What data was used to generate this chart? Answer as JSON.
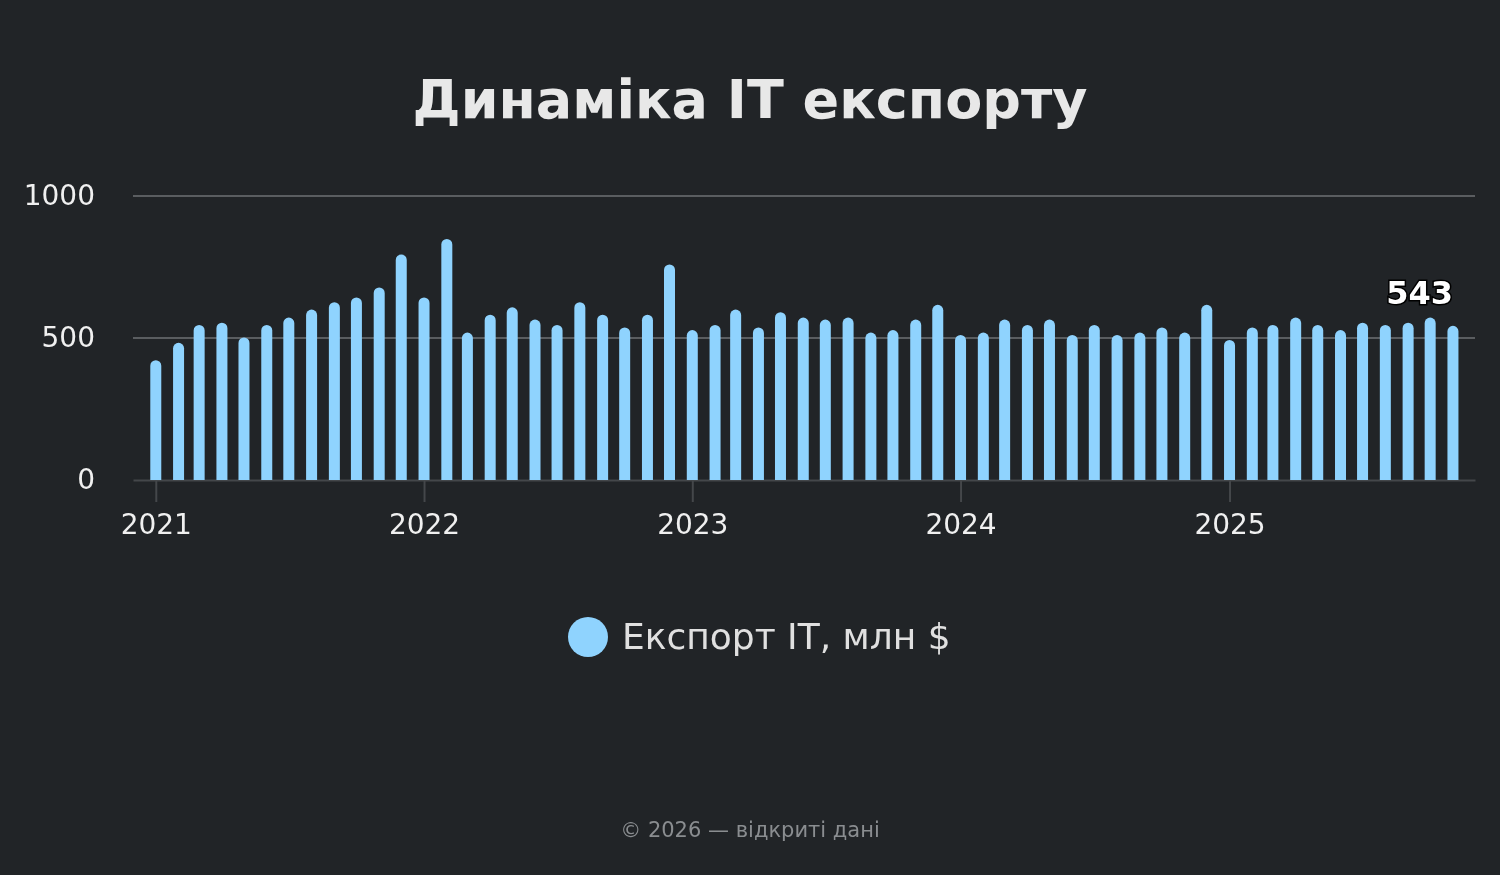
{
  "chart_data": {
    "type": "bar",
    "title": "Динаміка ІТ експорту",
    "x": [
      "2021-01",
      "2021-02",
      "2021-03",
      "2021-04",
      "2021-05",
      "2021-06",
      "2021-07",
      "2021-08",
      "2021-09",
      "2021-10",
      "2021-11",
      "2021-12",
      "2022-01",
      "2022-02",
      "2022-03",
      "2022-04",
      "2022-05",
      "2022-06",
      "2022-07",
      "2022-08",
      "2022-09",
      "2022-10",
      "2022-11",
      "2022-12",
      "2023-01",
      "2023-02",
      "2023-03",
      "2023-04",
      "2023-05",
      "2023-06",
      "2023-07",
      "2023-08",
      "2023-09",
      "2023-10",
      "2023-11",
      "2023-12",
      "2024-01",
      "2024-02",
      "2024-03",
      "2024-04",
      "2024-05",
      "2024-06",
      "2024-07",
      "2024-08",
      "2024-09",
      "2024-10",
      "2024-11",
      "2024-12",
      "2025-01",
      "2025-02",
      "2025-03",
      "2025-04",
      "2025-05",
      "2025-06",
      "2025-07",
      "2025-08",
      "2025-09",
      "2025-10",
      "2025-11"
    ],
    "series": [
      {
        "name": "Експорт ІТ, млн $",
        "color": "#8fd3fe",
        "values": [
          422,
          483,
          546,
          554,
          502,
          546,
          572,
          600,
          626,
          643,
          678,
          794,
          643,
          849,
          519,
          582,
          608,
          565,
          546,
          626,
          582,
          537,
          582,
          759,
          528,
          546,
          600,
          537,
          591,
          572,
          565,
          572,
          519,
          528,
          565,
          617,
          511,
          519,
          565,
          546,
          565,
          511,
          546,
          511,
          519,
          537,
          519,
          617,
          493,
          537,
          546,
          572,
          546,
          528,
          554,
          546,
          554,
          572,
          543
        ],
        "value_labels": [
          null,
          null,
          null,
          null,
          null,
          null,
          null,
          null,
          null,
          null,
          null,
          null,
          null,
          null,
          null,
          null,
          null,
          null,
          null,
          null,
          null,
          null,
          null,
          null,
          null,
          null,
          null,
          null,
          null,
          null,
          null,
          null,
          null,
          null,
          null,
          null,
          null,
          null,
          null,
          null,
          null,
          null,
          null,
          null,
          null,
          null,
          null,
          null,
          null,
          null,
          null,
          null,
          null,
          null,
          null,
          null,
          null,
          null,
          "543"
        ]
      }
    ],
    "xlim": [
      "2020-12",
      "2025-12"
    ],
    "xticks": [
      {
        "value": "2021",
        "label": "2021"
      },
      {
        "value": "2022",
        "label": "2022"
      },
      {
        "value": "2023",
        "label": "2023"
      },
      {
        "value": "2024",
        "label": "2024"
      },
      {
        "value": "2025",
        "label": "2025"
      }
    ],
    "ylim": [
      0,
      1000
    ],
    "yticks": [
      0,
      500,
      1000
    ],
    "grid": "y",
    "legend": "bottom",
    "annotations": [
      "© 2026 — відкриті дані"
    ]
  }
}
